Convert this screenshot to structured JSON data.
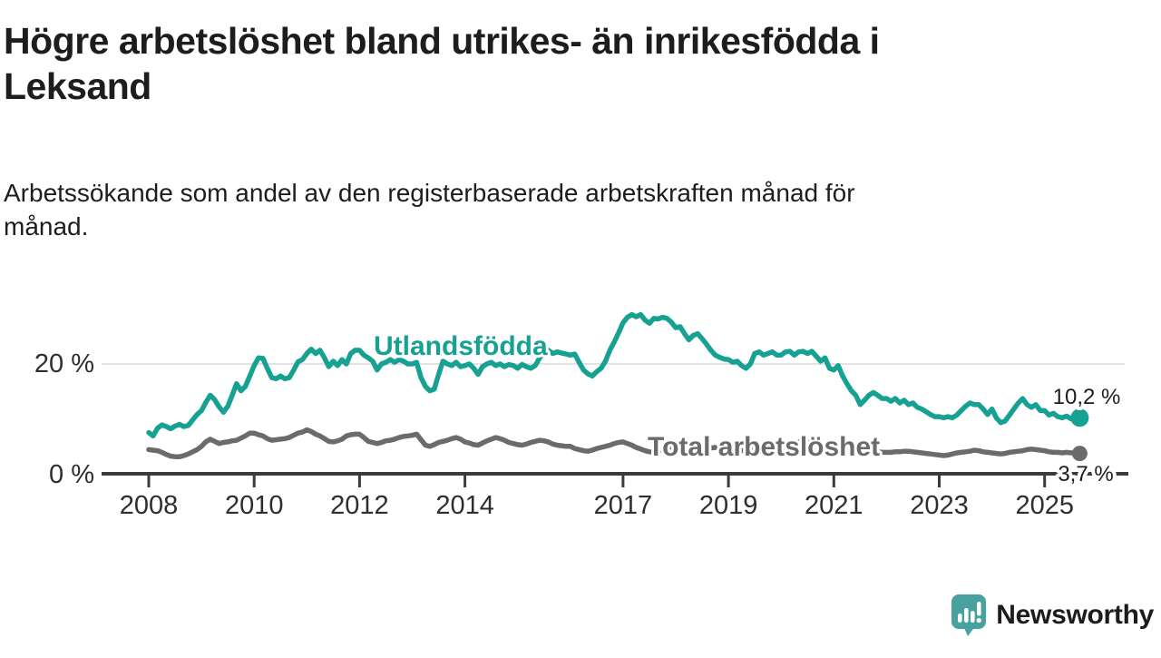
{
  "header": {
    "title_lines": [
      "Högre arbetslöshet bland utrikes- än inrikesfödda i",
      "Leksand"
    ],
    "subtitle_lines": [
      "Arbetssökande som andel av den registerbaserade arbetskraften månad för",
      "månad."
    ]
  },
  "chart_data": {
    "type": "line",
    "title": "Högre arbetslöshet bland utrikes- än inrikesfödda i Leksand",
    "subtitle": "Arbetssökande som andel av den registerbaserade arbetskraften månad för månad.",
    "x_monthly_from": "2008-01",
    "x_monthly_to": "2025-09",
    "x_ticks": [
      {
        "label": "2008",
        "year": 2008
      },
      {
        "label": "2010",
        "year": 2010
      },
      {
        "label": "2012",
        "year": 2012
      },
      {
        "label": "2014",
        "year": 2014
      },
      {
        "label": "2017",
        "year": 2017
      },
      {
        "label": "2019",
        "year": 2019
      },
      {
        "label": "2021",
        "year": 2021
      },
      {
        "label": "2023",
        "year": 2023
      },
      {
        "label": "2025",
        "year": 2025
      }
    ],
    "y_ticks": [
      {
        "label": "20 %",
        "value": 20
      },
      {
        "label": "0 %",
        "value": 0
      }
    ],
    "ylim": [
      0,
      31
    ],
    "grid": "single light horizontal gridline at 20 %",
    "legend_position": "inline labels on lines, end-value labels at right",
    "series": [
      {
        "name": "Utlandsfödda",
        "color": "#16a192",
        "end_label": "10,2 %",
        "end_value": 10.2,
        "values": [
          7.5,
          6.9,
          8.3,
          8.9,
          8.6,
          8.2,
          8.7,
          9.0,
          8.6,
          8.8,
          9.8,
          10.8,
          11.5,
          13.0,
          14.3,
          13.5,
          12.2,
          11.2,
          12.3,
          14.3,
          16.4,
          15.1,
          15.9,
          17.8,
          19.7,
          21.1,
          21.0,
          19.2,
          17.5,
          17.3,
          17.8,
          17.3,
          17.5,
          18.9,
          20.4,
          20.8,
          21.9,
          22.7,
          21.9,
          22.5,
          21.1,
          19.5,
          20.5,
          19.7,
          20.8,
          20.0,
          21.9,
          22.5,
          22.5,
          21.6,
          21.1,
          20.5,
          18.9,
          20.0,
          20.3,
          20.8,
          20.3,
          20.8,
          20.5,
          20.0,
          20.0,
          20.3,
          17.5,
          15.9,
          15.1,
          15.4,
          18.1,
          20.5,
          20.0,
          19.7,
          20.3,
          19.5,
          19.7,
          20.0,
          19.2,
          18.1,
          19.5,
          20.0,
          20.3,
          19.7,
          20.0,
          19.5,
          19.9,
          19.7,
          19.2,
          19.9,
          19.5,
          19.2,
          19.7,
          21.1,
          22.0,
          22.5,
          21.9,
          22.2,
          22.0,
          21.8,
          21.6,
          21.8,
          20.3,
          18.9,
          18.2,
          17.8,
          18.6,
          19.2,
          20.5,
          22.5,
          24.0,
          25.7,
          27.5,
          28.5,
          29.0,
          28.6,
          29.0,
          28.0,
          27.4,
          28.3,
          28.2,
          28.5,
          28.3,
          27.6,
          26.6,
          26.8,
          25.5,
          24.4,
          25.2,
          25.5,
          24.6,
          23.6,
          22.5,
          21.6,
          21.2,
          20.9,
          20.8,
          20.3,
          20.5,
          19.7,
          19.2,
          20.0,
          21.9,
          22.2,
          21.6,
          21.9,
          22.2,
          21.6,
          21.6,
          22.2,
          22.3,
          21.6,
          22.2,
          22.3,
          21.9,
          22.3,
          21.4,
          20.5,
          21.1,
          19.2,
          18.9,
          19.7,
          17.8,
          16.4,
          15.1,
          14.3,
          12.6,
          13.4,
          14.3,
          14.8,
          14.3,
          13.7,
          13.7,
          13.2,
          13.7,
          12.9,
          13.4,
          12.6,
          12.9,
          12.1,
          11.8,
          11.3,
          10.8,
          10.4,
          10.4,
          10.2,
          10.4,
          10.2,
          10.7,
          11.5,
          12.3,
          12.9,
          12.6,
          12.6,
          11.8,
          10.8,
          11.8,
          10.2,
          9.3,
          9.6,
          10.7,
          11.8,
          12.9,
          13.7,
          12.6,
          12.1,
          12.6,
          11.5,
          11.5,
          10.7,
          11.0,
          10.4,
          10.2,
          10.5,
          10.0,
          10.4,
          10.2
        ]
      },
      {
        "name": "Total arbetslöshet",
        "color": "#6b6b6b",
        "end_label": "3,7 %",
        "end_value": 3.7,
        "values": [
          4.4,
          4.3,
          4.2,
          3.9,
          3.5,
          3.2,
          3.1,
          3.1,
          3.3,
          3.6,
          4.0,
          4.4,
          5.0,
          5.8,
          6.3,
          5.9,
          5.5,
          5.7,
          5.8,
          6.0,
          6.1,
          6.5,
          6.9,
          7.4,
          7.4,
          7.1,
          6.9,
          6.4,
          6.1,
          6.2,
          6.3,
          6.4,
          6.6,
          7.0,
          7.4,
          7.6,
          8.0,
          7.7,
          7.2,
          6.9,
          6.4,
          5.9,
          5.8,
          6.0,
          6.3,
          6.9,
          7.1,
          7.2,
          7.2,
          6.6,
          5.9,
          5.7,
          5.5,
          5.7,
          6.0,
          6.1,
          6.3,
          6.6,
          6.8,
          6.9,
          7.0,
          7.2,
          6.2,
          5.2,
          5.0,
          5.3,
          5.7,
          5.9,
          6.1,
          6.4,
          6.6,
          6.3,
          5.8,
          5.6,
          5.3,
          5.2,
          5.6,
          6.0,
          6.3,
          6.6,
          6.4,
          6.1,
          5.7,
          5.5,
          5.3,
          5.2,
          5.4,
          5.7,
          5.9,
          6.1,
          6.0,
          5.8,
          5.4,
          5.2,
          5.1,
          5.0,
          5.0,
          4.6,
          4.4,
          4.2,
          4.1,
          4.3,
          4.6,
          4.8,
          5.0,
          5.2,
          5.5,
          5.7,
          5.8,
          5.5,
          5.2,
          4.8,
          4.5,
          4.2,
          4.0,
          3.9,
          4.1,
          4.4,
          4.7,
          4.9,
          4.9,
          5.0,
          4.8,
          4.6,
          4.4,
          4.3,
          4.4,
          4.6,
          4.7,
          4.8,
          4.7,
          4.6,
          4.5,
          4.4,
          4.3,
          4.2,
          4.3,
          4.4,
          4.6,
          4.7,
          4.8,
          4.8,
          4.7,
          4.6,
          4.7,
          4.8,
          5.2,
          5.6,
          5.8,
          5.9,
          5.8,
          5.7,
          5.5,
          5.3,
          5.2,
          5.1,
          5.0,
          4.9,
          4.8,
          4.6,
          4.5,
          4.4,
          4.3,
          4.2,
          4.1,
          4.0,
          4.0,
          3.9,
          3.9,
          3.9,
          4.0,
          4.0,
          4.1,
          4.1,
          4.0,
          3.9,
          3.8,
          3.7,
          3.6,
          3.5,
          3.4,
          3.3,
          3.4,
          3.6,
          3.8,
          3.9,
          4.0,
          4.1,
          4.3,
          4.2,
          4.0,
          3.9,
          3.8,
          3.7,
          3.6,
          3.7,
          3.9,
          4.0,
          4.1,
          4.2,
          4.4,
          4.5,
          4.4,
          4.3,
          4.2,
          4.0,
          3.9,
          3.9,
          3.8,
          3.9,
          3.8,
          3.8,
          3.7
        ]
      }
    ],
    "colors": {
      "gridline": "#d9d9d9",
      "axis": "#3b3b3b",
      "series_1": "#16a192",
      "series_2": "#6b6b6b"
    }
  },
  "branding": {
    "logo_text": "Newsworthy",
    "logo_color": "#47a19e",
    "logo_icon": "speech-bubble-bar-chart-exclamation-icon"
  }
}
